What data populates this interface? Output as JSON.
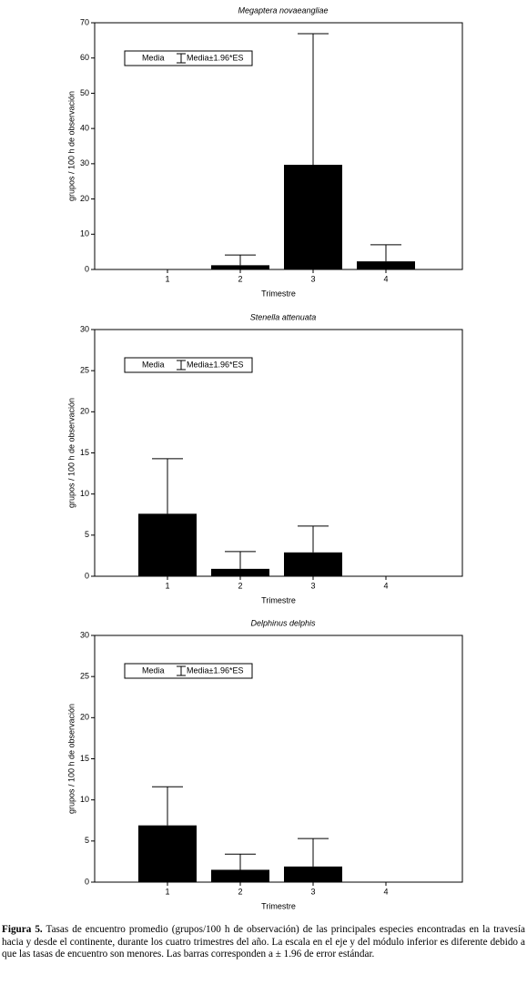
{
  "chart_data": [
    {
      "type": "bar",
      "title": "Megaptera novaeangliae",
      "x_label": "Trimestre",
      "y_label": "grupos / 100 h  de observación",
      "categories": [
        "1",
        "2",
        "3",
        "4"
      ],
      "series": [
        {
          "name": "Media",
          "color": "#000000",
          "values": [
            0,
            1.2,
            29.7,
            2.3
          ],
          "errors": [
            0,
            2.9,
            37.2,
            4.7
          ]
        }
      ],
      "error_label": "Media±1.96*ES",
      "ylim": [
        0,
        70
      ],
      "yticks": [
        0,
        10,
        20,
        30,
        40,
        50,
        60,
        70
      ],
      "grid": false
    },
    {
      "type": "bar",
      "title": "Stenella attenuata",
      "x_label": "Trimestre",
      "y_label": "grupos / 100 h  de observación",
      "categories": [
        "1",
        "2",
        "3",
        "4"
      ],
      "series": [
        {
          "name": "Media",
          "color": "#000000",
          "values": [
            7.6,
            0.9,
            2.9,
            0
          ],
          "errors": [
            6.7,
            2.1,
            3.2,
            0
          ]
        }
      ],
      "error_label": "Media±1.96*ES",
      "ylim": [
        0,
        30
      ],
      "yticks": [
        0,
        5,
        10,
        15,
        20,
        25,
        30
      ],
      "grid": false
    },
    {
      "type": "bar",
      "title": "Delphinus delphis",
      "x_label": "Trimestre",
      "y_label": "grupos / 100 h  de observación",
      "categories": [
        "1",
        "2",
        "3",
        "4"
      ],
      "series": [
        {
          "name": "Media",
          "color": "#000000",
          "values": [
            6.9,
            1.5,
            1.9,
            0
          ],
          "errors": [
            4.7,
            1.9,
            3.4,
            0
          ]
        }
      ],
      "error_label": "Media±1.96*ES",
      "ylim": [
        0,
        30
      ],
      "yticks": [
        0,
        5,
        10,
        15,
        20,
        25,
        30
      ],
      "grid": false
    }
  ],
  "caption": {
    "label": "Figura 5.",
    "text": "Tasas de encuentro promedio (grupos/100 h de observación) de las principales especies encontradas en la travesía hacia y desde el continente, durante los cuatro trimestres del año. La escala en el eje y del módulo inferior es diferente debido a que las tasas de encuentro son menores. Las barras corresponden a ± 1.96 de error estándar."
  }
}
